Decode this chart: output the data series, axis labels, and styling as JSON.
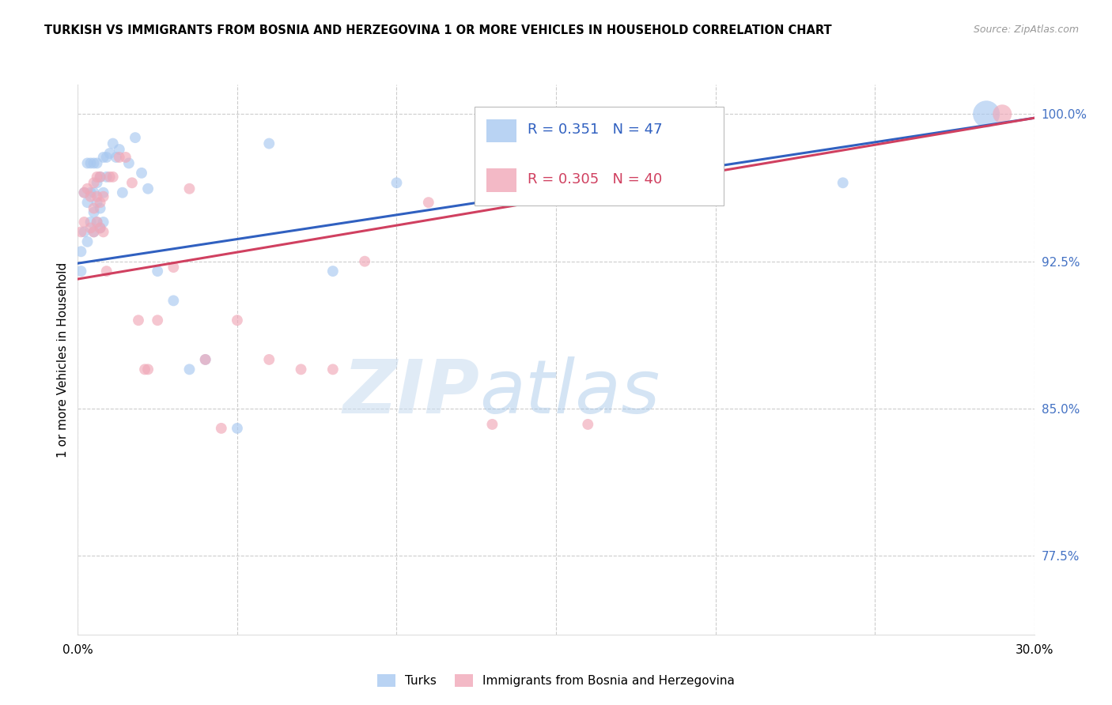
{
  "title": "TURKISH VS IMMIGRANTS FROM BOSNIA AND HERZEGOVINA 1 OR MORE VEHICLES IN HOUSEHOLD CORRELATION CHART",
  "source": "Source: ZipAtlas.com",
  "ylabel": "1 or more Vehicles in Household",
  "xlim": [
    0.0,
    0.3
  ],
  "ylim": [
    0.735,
    1.015
  ],
  "xticks": [
    0.0,
    0.05,
    0.1,
    0.15,
    0.2,
    0.25,
    0.3
  ],
  "xticklabels": [
    "0.0%",
    "",
    "",
    "",
    "",
    "",
    "30.0%"
  ],
  "yticks_right": [
    1.0,
    0.925,
    0.85,
    0.775
  ],
  "ytick_labels_right": [
    "100.0%",
    "92.5%",
    "85.0%",
    "77.5%"
  ],
  "grid_color": "#cccccc",
  "blue_color": "#A8C8F0",
  "pink_color": "#F0A8B8",
  "blue_line_color": "#3060C0",
  "pink_line_color": "#D04060",
  "blue_R": 0.351,
  "blue_N": 47,
  "pink_R": 0.305,
  "pink_N": 40,
  "legend_label_blue": "Turks",
  "legend_label_pink": "Immigrants from Bosnia and Herzegovina",
  "watermark_zip": "ZIP",
  "watermark_atlas": "atlas",
  "blue_x": [
    0.001,
    0.001,
    0.002,
    0.002,
    0.003,
    0.003,
    0.003,
    0.004,
    0.004,
    0.004,
    0.005,
    0.005,
    0.005,
    0.005,
    0.006,
    0.006,
    0.006,
    0.006,
    0.007,
    0.007,
    0.007,
    0.008,
    0.008,
    0.008,
    0.009,
    0.009,
    0.01,
    0.011,
    0.012,
    0.013,
    0.014,
    0.016,
    0.018,
    0.02,
    0.022,
    0.025,
    0.03,
    0.035,
    0.04,
    0.05,
    0.06,
    0.08,
    0.1,
    0.17,
    0.2,
    0.24,
    0.285
  ],
  "blue_y": [
    0.92,
    0.93,
    0.94,
    0.96,
    0.935,
    0.955,
    0.975,
    0.945,
    0.96,
    0.975,
    0.94,
    0.95,
    0.96,
    0.975,
    0.945,
    0.955,
    0.965,
    0.975,
    0.942,
    0.952,
    0.968,
    0.945,
    0.96,
    0.978,
    0.968,
    0.978,
    0.98,
    0.985,
    0.978,
    0.982,
    0.96,
    0.975,
    0.988,
    0.97,
    0.962,
    0.92,
    0.905,
    0.87,
    0.875,
    0.84,
    0.985,
    0.92,
    0.965,
    0.968,
    0.968,
    0.965,
    1.0
  ],
  "blue_sizes": [
    100,
    100,
    100,
    100,
    100,
    100,
    100,
    100,
    100,
    100,
    100,
    100,
    100,
    100,
    100,
    100,
    100,
    100,
    100,
    100,
    100,
    100,
    100,
    100,
    100,
    100,
    100,
    100,
    100,
    100,
    100,
    100,
    100,
    100,
    100,
    100,
    100,
    100,
    100,
    100,
    100,
    100,
    100,
    100,
    100,
    100,
    600
  ],
  "pink_x": [
    0.001,
    0.002,
    0.002,
    0.003,
    0.004,
    0.004,
    0.005,
    0.005,
    0.005,
    0.006,
    0.006,
    0.006,
    0.007,
    0.007,
    0.007,
    0.008,
    0.008,
    0.009,
    0.01,
    0.011,
    0.013,
    0.015,
    0.017,
    0.019,
    0.021,
    0.022,
    0.025,
    0.03,
    0.035,
    0.04,
    0.045,
    0.05,
    0.06,
    0.07,
    0.08,
    0.09,
    0.11,
    0.13,
    0.16,
    0.29
  ],
  "pink_y": [
    0.94,
    0.945,
    0.96,
    0.962,
    0.942,
    0.958,
    0.94,
    0.952,
    0.965,
    0.945,
    0.958,
    0.968,
    0.942,
    0.955,
    0.968,
    0.94,
    0.958,
    0.92,
    0.968,
    0.968,
    0.978,
    0.978,
    0.965,
    0.895,
    0.87,
    0.87,
    0.895,
    0.922,
    0.962,
    0.875,
    0.84,
    0.895,
    0.875,
    0.87,
    0.87,
    0.925,
    0.955,
    0.842,
    0.842,
    1.0
  ],
  "pink_sizes": [
    100,
    100,
    100,
    100,
    100,
    100,
    100,
    100,
    100,
    100,
    100,
    100,
    100,
    100,
    100,
    100,
    100,
    100,
    100,
    100,
    100,
    100,
    100,
    100,
    100,
    100,
    100,
    100,
    100,
    100,
    100,
    100,
    100,
    100,
    100,
    100,
    100,
    100,
    100,
    300
  ]
}
